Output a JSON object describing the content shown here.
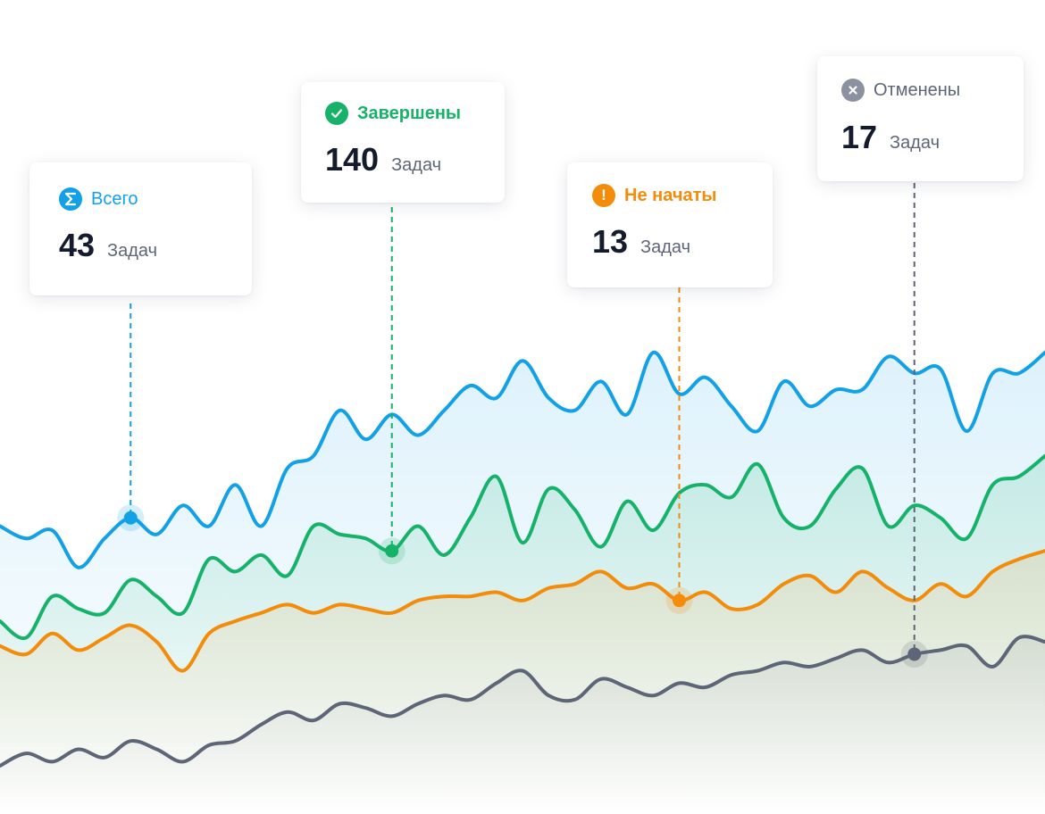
{
  "cards": [
    {
      "id": "total",
      "label": "Всего",
      "value": "43",
      "unit": "Задач",
      "color": "#12a0e6",
      "icon": "sigma-icon"
    },
    {
      "id": "completed",
      "label": "Завершены",
      "value": "140",
      "unit": "Задач",
      "color": "#17b26a",
      "icon": "check-circle-icon"
    },
    {
      "id": "not_started",
      "label": "Не начаты",
      "value": "13",
      "unit": "Задач",
      "color": "#f38b0b",
      "icon": "exclamation-circle-icon"
    },
    {
      "id": "canceled",
      "label": "Отменены",
      "value": "17",
      "unit": "Задач",
      "color": "#8b919f",
      "icon": "x-circle-icon"
    }
  ],
  "chart_data": {
    "type": "area",
    "title": "",
    "xlabel": "",
    "ylabel": "",
    "grid": false,
    "xlim": [
      0,
      40
    ],
    "ylim": [
      0,
      100
    ],
    "x": [
      0,
      1,
      2,
      3,
      4,
      5,
      6,
      7,
      8,
      9,
      10,
      11,
      12,
      13,
      14,
      15,
      16,
      17,
      18,
      19,
      20,
      21,
      22,
      23,
      24,
      25,
      26,
      27,
      28,
      29,
      30,
      31,
      32,
      33,
      34,
      35,
      36,
      37,
      38,
      39,
      40
    ],
    "series": [
      {
        "name": "Всего",
        "color": "#12a0e6",
        "highlight_index": 5,
        "values": [
          58,
          55,
          57,
          48,
          55,
          60,
          56,
          63,
          58,
          68,
          58,
          72,
          75,
          86,
          79,
          85,
          80,
          86,
          92,
          89,
          98,
          89,
          86,
          93,
          85,
          100,
          90,
          94,
          87,
          81,
          93,
          87,
          91,
          91,
          99,
          95,
          96,
          81,
          95,
          95,
          100
        ]
      },
      {
        "name": "Завершены",
        "color": "#17b26a",
        "highlight_index": 15,
        "values": [
          35,
          31,
          41,
          38,
          37,
          45,
          41,
          37,
          50,
          47,
          51,
          46,
          58,
          56,
          55,
          52,
          58,
          51,
          60,
          70,
          54,
          67,
          62,
          53,
          64,
          57,
          66,
          68,
          65,
          73,
          60,
          58,
          67,
          72,
          58,
          63,
          60,
          55,
          68,
          70,
          75
        ]
      },
      {
        "name": "Не начаты",
        "color": "#f38b0b",
        "highlight_index": 26,
        "values": [
          29,
          27,
          32,
          28,
          31,
          34,
          30,
          23,
          32,
          35,
          37,
          39,
          37,
          39,
          38,
          37,
          40,
          41,
          41,
          42,
          40,
          43,
          44,
          47,
          43,
          44,
          40,
          42,
          38,
          39,
          44,
          46,
          42,
          47,
          43,
          40,
          44,
          41,
          47,
          50,
          52
        ]
      },
      {
        "name": "Отменены",
        "color": "#5d6577",
        "highlight_index": 35,
        "values": [
          0,
          3,
          1,
          4,
          2,
          6,
          4,
          1,
          5,
          6,
          10,
          13,
          11,
          15,
          14,
          12,
          15,
          17,
          16,
          20,
          23,
          17,
          16,
          21,
          19,
          17,
          20,
          19,
          22,
          23,
          25,
          24,
          26,
          28,
          25,
          27,
          28,
          29,
          24,
          31,
          30
        ]
      }
    ]
  }
}
